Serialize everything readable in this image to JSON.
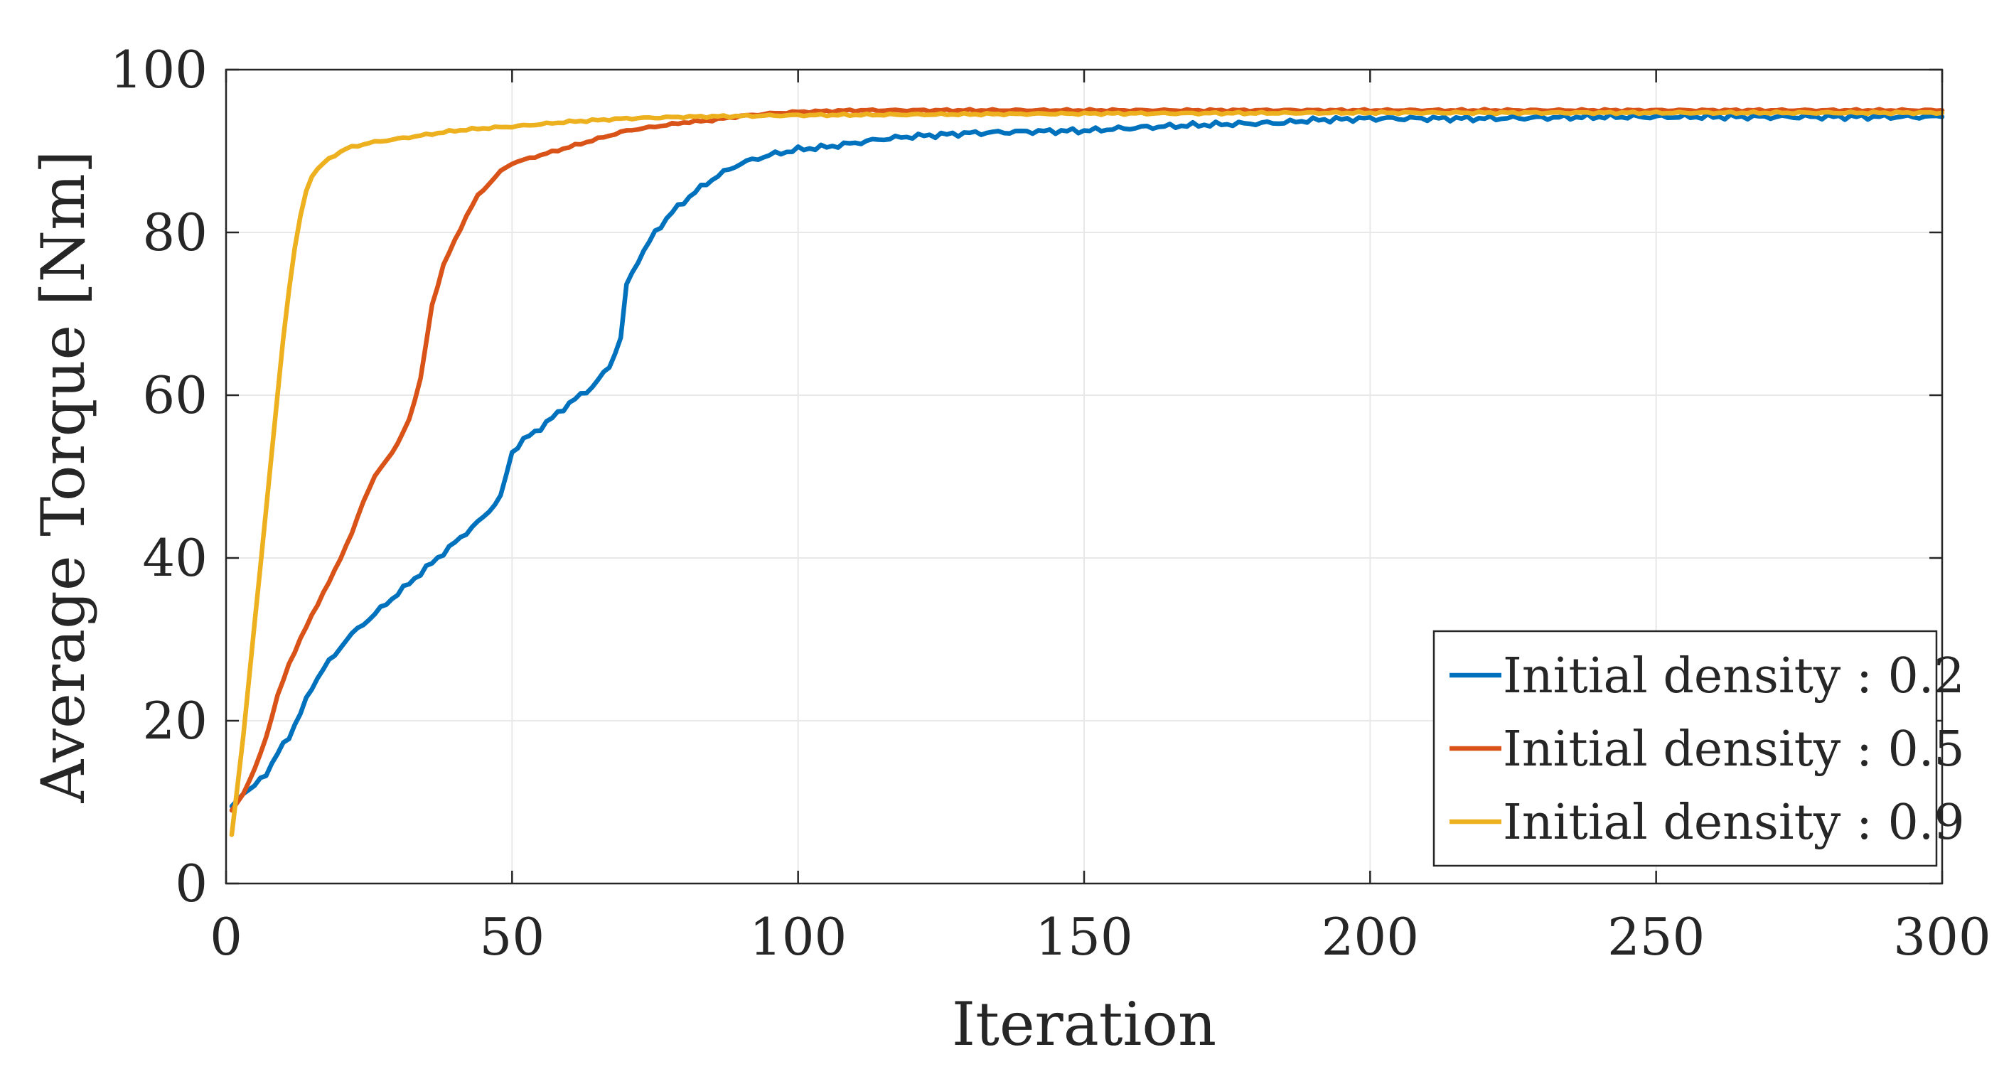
{
  "chart_data": {
    "type": "line",
    "title": "",
    "xlabel": "Iteration",
    "ylabel": "Average Torque [Nm]",
    "xlim": [
      0,
      300
    ],
    "ylim": [
      0,
      100
    ],
    "grid": true,
    "legend_position": "bottom-right",
    "x_ticks": [
      0,
      50,
      100,
      150,
      200,
      250,
      300
    ],
    "y_ticks": [
      0,
      20,
      40,
      60,
      80,
      100
    ],
    "series": [
      {
        "name": "Initial density : 0.2",
        "color": "#0072BD",
        "points": [
          [
            1,
            9.5
          ],
          [
            3,
            11
          ],
          [
            5,
            12
          ],
          [
            7,
            13.5
          ],
          [
            9,
            16
          ],
          [
            11,
            18
          ],
          [
            13,
            21
          ],
          [
            15,
            24
          ],
          [
            17,
            26.5
          ],
          [
            19,
            28
          ],
          [
            21,
            30
          ],
          [
            25,
            32.5
          ],
          [
            29,
            35
          ],
          [
            33,
            37.5
          ],
          [
            37,
            40
          ],
          [
            41,
            42.5
          ],
          [
            45,
            45
          ],
          [
            48,
            47.5
          ],
          [
            50,
            53
          ],
          [
            52,
            54.5
          ],
          [
            55,
            56
          ],
          [
            60,
            59
          ],
          [
            64,
            61
          ],
          [
            67,
            63.5
          ],
          [
            69,
            67
          ],
          [
            70,
            73.5
          ],
          [
            72,
            76.5
          ],
          [
            75,
            80
          ],
          [
            78,
            82.5
          ],
          [
            82,
            85
          ],
          [
            86,
            87
          ],
          [
            90,
            88.5
          ],
          [
            95,
            89.5
          ],
          [
            100,
            90.2
          ],
          [
            105,
            90.5
          ],
          [
            110,
            91
          ],
          [
            115,
            91.5
          ],
          [
            120,
            91.8
          ],
          [
            125,
            92
          ],
          [
            130,
            92.2
          ],
          [
            135,
            92.3
          ],
          [
            140,
            92.4
          ],
          [
            150,
            92.5
          ],
          [
            160,
            92.9
          ],
          [
            170,
            93.2
          ],
          [
            180,
            93.4
          ],
          [
            185,
            93.5
          ],
          [
            190,
            93.8
          ],
          [
            200,
            94
          ],
          [
            210,
            94
          ],
          [
            220,
            94
          ],
          [
            230,
            94.1
          ],
          [
            240,
            94.2
          ],
          [
            250,
            94.2
          ],
          [
            260,
            94.2
          ],
          [
            270,
            94.2
          ],
          [
            280,
            94.2
          ],
          [
            290,
            94.2
          ],
          [
            300,
            94.2
          ]
        ]
      },
      {
        "name": "Initial density : 0.5",
        "color": "#D95319",
        "points": [
          [
            1,
            9
          ],
          [
            3,
            11
          ],
          [
            5,
            14
          ],
          [
            7,
            18
          ],
          [
            9,
            23
          ],
          [
            11,
            27
          ],
          [
            13,
            30
          ],
          [
            15,
            33
          ],
          [
            18,
            37
          ],
          [
            20,
            40
          ],
          [
            22,
            43
          ],
          [
            24,
            47
          ],
          [
            26,
            50
          ],
          [
            28,
            52
          ],
          [
            30,
            54
          ],
          [
            32,
            57
          ],
          [
            34,
            62
          ],
          [
            36,
            71
          ],
          [
            38,
            76
          ],
          [
            40,
            79
          ],
          [
            42,
            82
          ],
          [
            44,
            84.5
          ],
          [
            46,
            86
          ],
          [
            48,
            87.5
          ],
          [
            50,
            88.5
          ],
          [
            55,
            89.5
          ],
          [
            60,
            90.5
          ],
          [
            65,
            91.5
          ],
          [
            70,
            92.5
          ],
          [
            75,
            93
          ],
          [
            80,
            93.5
          ],
          [
            85,
            93.8
          ],
          [
            90,
            94.3
          ],
          [
            95,
            94.6
          ],
          [
            100,
            94.8
          ],
          [
            110,
            95
          ],
          [
            150,
            95
          ],
          [
            200,
            95
          ],
          [
            250,
            95
          ],
          [
            300,
            95
          ]
        ]
      },
      {
        "name": "Initial density : 0.9",
        "color": "#EDB120",
        "points": [
          [
            1,
            6
          ],
          [
            2,
            12
          ],
          [
            3,
            18
          ],
          [
            4,
            25
          ],
          [
            5,
            32
          ],
          [
            6,
            39
          ],
          [
            7,
            46
          ],
          [
            8,
            53
          ],
          [
            9,
            60
          ],
          [
            10,
            67
          ],
          [
            11,
            73
          ],
          [
            12,
            78
          ],
          [
            13,
            82
          ],
          [
            14,
            85
          ],
          [
            15,
            87
          ],
          [
            17,
            88.5
          ],
          [
            19,
            89.5
          ],
          [
            21,
            90.3
          ],
          [
            25,
            91
          ],
          [
            30,
            91.5
          ],
          [
            35,
            92
          ],
          [
            40,
            92.5
          ],
          [
            45,
            92.8
          ],
          [
            50,
            93
          ],
          [
            55,
            93.3
          ],
          [
            60,
            93.6
          ],
          [
            70,
            94
          ],
          [
            80,
            94.2
          ],
          [
            90,
            94.3
          ],
          [
            100,
            94.4
          ],
          [
            150,
            94.6
          ],
          [
            200,
            94.7
          ],
          [
            250,
            94.7
          ],
          [
            300,
            94.7
          ]
        ]
      }
    ]
  }
}
